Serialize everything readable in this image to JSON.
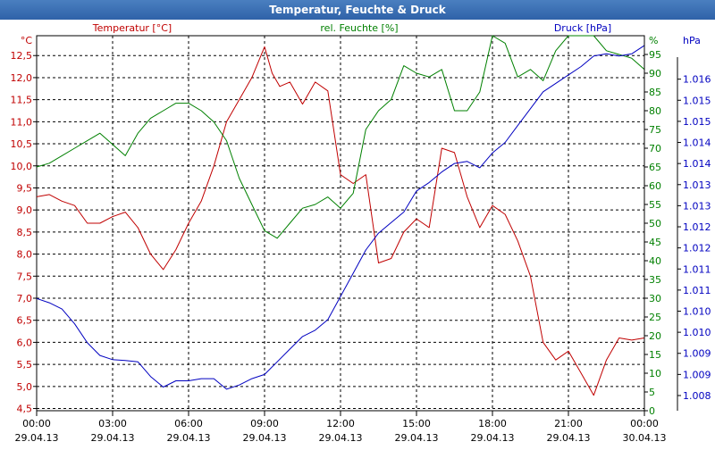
{
  "window": {
    "title": "Temperatur, Feuchte & Druck"
  },
  "chart_data": {
    "type": "line",
    "title": "Temperatur, Feuchte & Druck",
    "x_ticks": [
      {
        "time": "00:00",
        "date": "29.04.13"
      },
      {
        "time": "03:00",
        "date": "29.04.13"
      },
      {
        "time": "06:00",
        "date": "29.04.13"
      },
      {
        "time": "09:00",
        "date": "29.04.13"
      },
      {
        "time": "12:00",
        "date": "29.04.13"
      },
      {
        "time": "15:00",
        "date": "29.04.13"
      },
      {
        "time": "18:00",
        "date": "29.04.13"
      },
      {
        "time": "21:00",
        "date": "29.04.13"
      },
      {
        "time": "00:00",
        "date": "30.04.13"
      }
    ],
    "x_range_hours": [
      0,
      24
    ],
    "grid": true,
    "axes": {
      "temperature": {
        "label": "Temperatur [°C]",
        "unit": "°C",
        "side": "left",
        "range": [
          4.45,
          12.95
        ],
        "ticks": [
          "4,5",
          "5,0",
          "5,5",
          "6,0",
          "6,5",
          "7,0",
          "7,5",
          "8,0",
          "8,5",
          "9,0",
          "9,5",
          "10,0",
          "10,5",
          "11,0",
          "11,5",
          "12,0",
          "12,5"
        ],
        "color": "#c00000"
      },
      "humidity": {
        "label": "rel. Feuchte [%]",
        "unit": "%",
        "side": "right-inner",
        "range": [
          0,
          100
        ],
        "ticks": [
          "0",
          "5",
          "10",
          "15",
          "20",
          "25",
          "30",
          "35",
          "40",
          "45",
          "50",
          "55",
          "60",
          "65",
          "70",
          "75",
          "80",
          "85",
          "90",
          "95"
        ],
        "color": "#008000"
      },
      "pressure": {
        "label": "Druck [hPa]",
        "unit": "hPa",
        "side": "right-outer",
        "range": [
          1007.64,
          1016.53
        ],
        "ticks": [
          "1.008",
          "1.009",
          "1.009",
          "1.010",
          "1.010",
          "1.011",
          "1.011",
          "1.012",
          "1.012",
          "1.013",
          "1.013",
          "1.014",
          "1.014",
          "1.015",
          "1.015",
          "1.016"
        ],
        "color": "#0000c0"
      }
    },
    "series": [
      {
        "name": "Temperatur [°C]",
        "axis": "temperature",
        "color": "#c00000",
        "x": [
          0,
          0.5,
          1,
          1.5,
          2,
          2.5,
          3,
          3.5,
          4,
          4.5,
          5,
          5.5,
          6,
          6.5,
          7,
          7.5,
          8,
          8.5,
          9,
          9.3,
          9.6,
          10,
          10.5,
          11,
          11.5,
          12,
          12.5,
          13,
          13.5,
          14,
          14.5,
          15,
          15.5,
          16,
          16.5,
          17,
          17.5,
          18,
          18.5,
          19,
          19.5,
          20,
          20.5,
          21,
          21.5,
          22,
          22.5,
          23,
          23.5,
          24
        ],
        "y": [
          9.3,
          9.35,
          9.2,
          9.1,
          8.7,
          8.7,
          8.85,
          8.95,
          8.6,
          8.0,
          7.65,
          8.1,
          8.7,
          9.2,
          10.0,
          11.0,
          11.5,
          12.0,
          12.7,
          12.1,
          11.8,
          11.9,
          11.4,
          11.9,
          11.7,
          9.8,
          9.6,
          9.8,
          7.8,
          7.9,
          8.5,
          8.8,
          8.6,
          10.4,
          10.3,
          9.3,
          8.6,
          9.1,
          8.9,
          8.3,
          7.5,
          6.0,
          5.6,
          5.8,
          5.3,
          4.8,
          5.6,
          6.1,
          6.05,
          6.1
        ]
      },
      {
        "name": "rel. Feuchte [%]",
        "axis": "humidity",
        "color": "#008000",
        "x": [
          0,
          0.5,
          1,
          1.5,
          2,
          2.5,
          3,
          3.5,
          4,
          4.5,
          5,
          5.5,
          6,
          6.5,
          7,
          7.5,
          8,
          8.5,
          9,
          9.5,
          10,
          10.5,
          11,
          11.5,
          12,
          12.5,
          13,
          13.5,
          14,
          14.5,
          15,
          15.5,
          16,
          16.5,
          17,
          17.5,
          18,
          18.5,
          19,
          19.5,
          20,
          20.5,
          21,
          21.5,
          22,
          22.5,
          23,
          23.5,
          24
        ],
        "y": [
          65,
          66,
          68,
          70,
          72,
          74,
          71,
          68,
          74,
          78,
          80,
          82,
          82,
          80,
          77,
          72,
          62,
          55,
          48,
          46,
          50,
          54,
          55,
          57,
          54,
          58,
          75,
          80,
          83,
          92,
          90,
          89,
          91,
          80,
          80,
          85,
          100,
          98,
          89,
          91,
          88,
          96,
          100,
          101,
          100,
          96,
          95,
          94,
          91
        ]
      },
      {
        "name": "Druck [hPa]",
        "axis": "pressure",
        "color": "#0000c0",
        "x": [
          0,
          0.5,
          1,
          1.5,
          2,
          2.5,
          3,
          3.5,
          4,
          4.5,
          5,
          5.5,
          6,
          6.5,
          7,
          7.5,
          8,
          8.5,
          9,
          9.5,
          10,
          10.5,
          11,
          11.5,
          12,
          12.5,
          13,
          13.5,
          14,
          14.5,
          15,
          15.5,
          16,
          16.5,
          17,
          17.5,
          18,
          18.5,
          19,
          19.5,
          20,
          20.5,
          21,
          21.5,
          22,
          22.5,
          23,
          23.5,
          24
        ],
        "y": [
          1010.3,
          1010.2,
          1010.05,
          1009.7,
          1009.25,
          1008.95,
          1008.85,
          1008.83,
          1008.8,
          1008.45,
          1008.2,
          1008.35,
          1008.35,
          1008.4,
          1008.4,
          1008.15,
          1008.25,
          1008.4,
          1008.5,
          1008.8,
          1009.1,
          1009.4,
          1009.55,
          1009.8,
          1010.35,
          1010.9,
          1011.45,
          1011.85,
          1012.1,
          1012.35,
          1012.85,
          1013.05,
          1013.3,
          1013.5,
          1013.55,
          1013.4,
          1013.75,
          1014.0,
          1014.4,
          1014.8,
          1015.2,
          1015.4,
          1015.6,
          1015.8,
          1016.05,
          1016.1,
          1016.05,
          1016.1,
          1016.3
        ]
      }
    ]
  }
}
